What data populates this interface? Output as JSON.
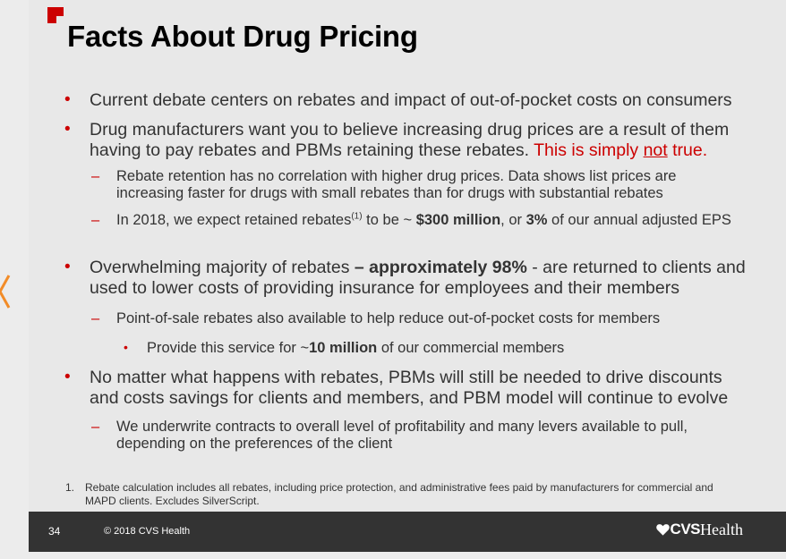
{
  "title": "Facts About Drug Pricing",
  "bullets": {
    "b1": "Current debate centers on rebates and impact of out-of-pocket costs on consumers",
    "b2": {
      "text": "Drug manufacturers want you to believe increasing drug prices are a result of them having to pay rebates and PBMs retaining these rebates.",
      "red_prefix": "This is simply",
      "red_underlined": "not",
      "red_suffix": "true."
    },
    "b2_1": "Rebate retention has no correlation with higher drug prices. Data shows list prices are increasing faster for drugs with small rebates than for drugs with substantial rebates",
    "b2_2": {
      "text1": "In 2018, we expect retained rebates",
      "sup": "(1)",
      "text2": "to be ~",
      "bold1": "$300 million",
      "text3": ", or",
      "bold2": "3%",
      "text4": "of our annual adjusted EPS"
    },
    "b3": {
      "text1": "Overwhelming majority of rebates",
      "bold": "– approximately 98%",
      "text2": "- are returned to clients and used to lower costs of providing insurance for employees and their members"
    },
    "b3_1": "Point-of-sale rebates also available to help reduce out-of-pocket costs for members",
    "b3_1_1": {
      "text1": "Provide this service for ~",
      "bold": "10 million",
      "text2": "of our commercial members"
    },
    "b4": "No matter what happens with rebates, PBMs will still be needed to drive discounts and costs savings for clients and members, and PBM model will continue to evolve",
    "b4_1": "We underwrite contracts to overall level of profitability and many levers available to pull, depending on the preferences of the client"
  },
  "markers": {
    "level1": "•",
    "level2": "–",
    "level3": "•"
  },
  "footnote": {
    "number": "1.",
    "text": "Rebate calculation includes all rebates, including price protection, and administrative fees paid by manufacturers for commercial and MAPD clients. Excludes SilverScript."
  },
  "footer": {
    "page_number": "34",
    "copyright": "© 2018 CVS Health",
    "brand_bold": "CVS",
    "brand_regular": "Health"
  },
  "colors": {
    "accent": "#cc0000",
    "footer_bg": "#333333",
    "edge_chevron": "#f28c28"
  }
}
